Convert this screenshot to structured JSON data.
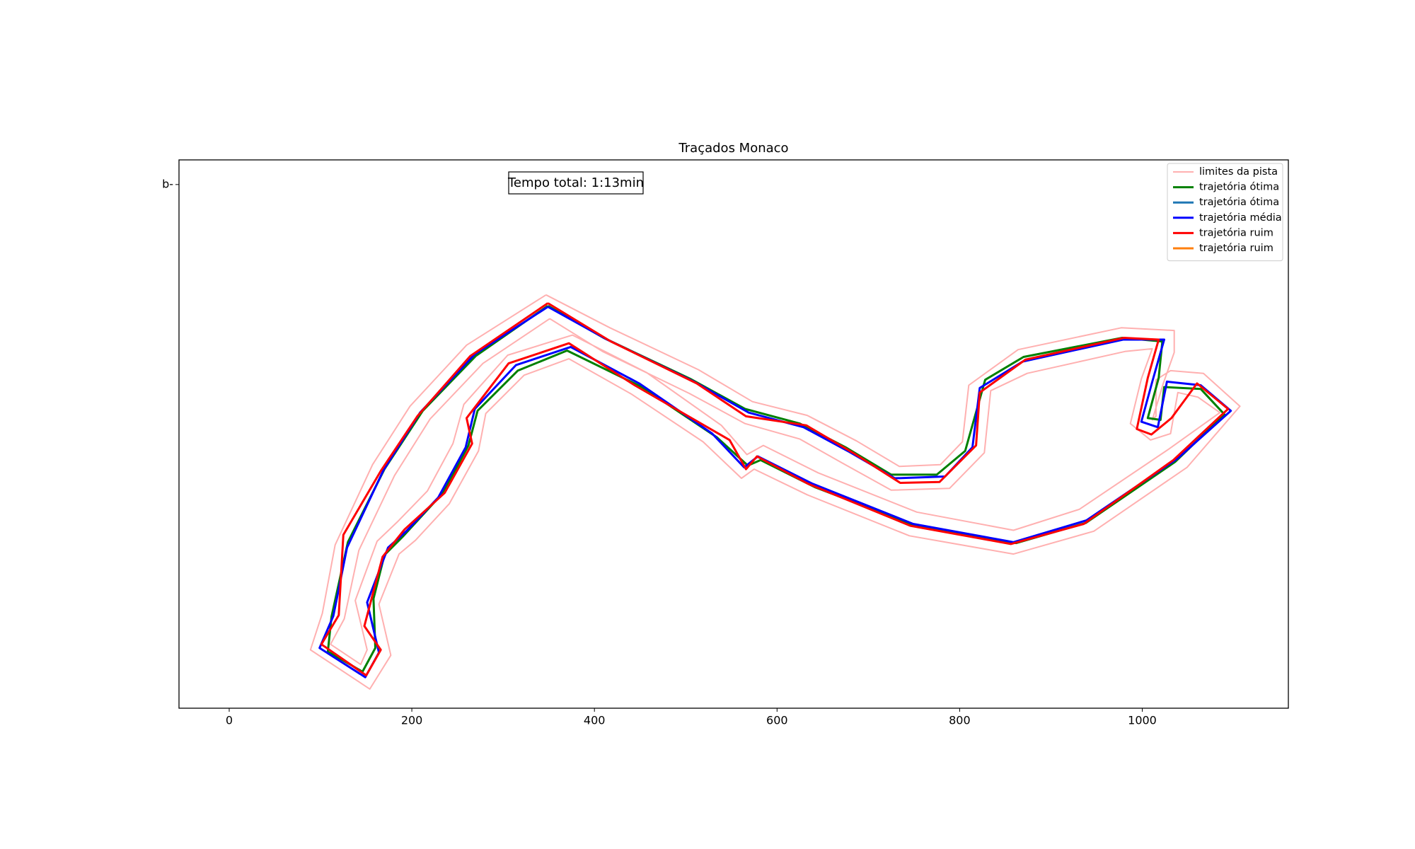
{
  "chart_data": {
    "type": "line",
    "title": "Traçados Monaco",
    "annotation": "Tempo total: 1:13min",
    "legend": "upper right",
    "xlim": [
      -55,
      1160
    ],
    "xticks": [
      0,
      200,
      400,
      600,
      800,
      1000
    ],
    "ylim": [
      -50,
      551
    ],
    "yticks": [
      {
        "value": 524,
        "label": "b-"
      }
    ],
    "series": [
      {
        "name": "limites da pista",
        "color": "#ffb0b0",
        "x": [
          347,
          417,
          514,
          573,
          633,
          687,
          734,
          779,
          803,
          810,
          864,
          977,
          1035,
          1035,
          1023,
          1011,
          1015,
          1015,
          1031,
          1067,
          1107,
          1049,
          947,
          859,
          745,
          633,
          575,
          561,
          519,
          441,
          372,
          323,
          281,
          273,
          241,
          204,
          186,
          164,
          177,
          154,
          89,
          102,
          116,
          157,
          198,
          260,
          347,
          null,
          351,
          409,
          504,
          565,
          625,
          671,
          725,
          789,
          827,
          834,
          874,
          981,
          1011,
          999,
          987,
          1009,
          1031,
          1039,
          1061,
          1085,
          1029,
          931,
          859,
          753,
          645,
          585,
          567,
          539,
          457,
          376,
          305,
          257,
          245,
          217,
          184,
          162,
          138,
          151,
          144,
          111,
          126,
          142,
          181,
          220,
          278,
          351
        ],
        "values": [
          403,
          367,
          321,
          286,
          271,
          243,
          215,
          217,
          242,
          304,
          343,
          367,
          364,
          340,
          306,
          266,
          270,
          310,
          320,
          317,
          281,
          214,
          144,
          119,
          139,
          184,
          212,
          202,
          242,
          294,
          333,
          315,
          273,
          232,
          174,
          134,
          119,
          64,
          8,
          -29,
          14,
          54,
          129,
          217,
          281,
          348,
          403,
          null,
          377,
          341,
          295,
          262,
          245,
          219,
          189,
          191,
          230,
          298,
          317,
          341,
          344,
          311,
          262,
          244,
          251,
          296,
          291,
          274,
          234,
          168,
          145,
          165,
          208,
          238,
          228,
          260,
          318,
          359,
          337,
          283,
          240,
          188,
          154,
          133,
          68,
          14,
          -2,
          20,
          48,
          123,
          205,
          267,
          328,
          377
        ]
      },
      {
        "name": "trajetória ótima",
        "color": "#008000",
        "x": [
          349,
          410,
          505,
          565,
          625,
          675,
          725,
          775,
          806,
          828,
          870,
          978,
          1022,
          1018,
          1006,
          1020,
          1024,
          1064,
          1090,
          1036,
          938,
          862,
          752,
          642,
          582,
          568,
          534,
          452,
          370,
          316,
          272,
          262,
          234,
          190,
          170,
          158,
          160,
          146,
          108,
          112,
          130,
          170,
          212,
          270,
          349
        ],
        "values": [
          391,
          356,
          311,
          278,
          262,
          236,
          206,
          206,
          232,
          310,
          335,
          356,
          352,
          312,
          268,
          266,
          302,
          300,
          272,
          220,
          153,
          131,
          150,
          192,
          222,
          216,
          247,
          302,
          342,
          320,
          276,
          238,
          186,
          138,
          118,
          70,
          16,
          -10,
          12,
          50,
          132,
          212,
          276,
          336,
          391
        ]
      },
      {
        "name": "trajetória ótima",
        "color": "#1f77b4",
        "x": [],
        "values": []
      },
      {
        "name": "trajetória média",
        "color": "#0000ff",
        "x": [
          349,
          414,
          509,
          569,
          629,
          679,
          729,
          784,
          814,
          822,
          869,
          979,
          1024,
          1011,
          999,
          1017,
          1027,
          1064,
          1097,
          1039,
          939,
          859,
          749,
          639,
          579,
          564,
          529,
          449,
          374,
          314,
          269,
          259,
          229,
          194,
          174,
          151,
          164,
          149,
          99,
          114,
          129,
          169,
          209,
          269,
          349
        ],
        "values": [
          390,
          354,
          308,
          274,
          258,
          231,
          202,
          204,
          236,
          301,
          330,
          354,
          354,
          308,
          264,
          258,
          308,
          304,
          276,
          224,
          156,
          132,
          152,
          196,
          226,
          214,
          251,
          306,
          346,
          326,
          278,
          236,
          181,
          144,
          126,
          66,
          11,
          -16,
          16,
          51,
          126,
          211,
          274,
          338,
          390
        ]
      },
      {
        "name": "trajetória ruim",
        "color": "#ff0000",
        "x": [
          349,
          418,
          512,
          566,
          632,
          683,
          735,
          778,
          818,
          822,
          872,
          980,
          1018,
          1006,
          994,
          1010,
          1032,
          1060,
          1094,
          1034,
          936,
          856,
          746,
          634,
          578,
          566,
          548,
          444,
          372,
          306,
          260,
          266,
          236,
          192,
          168,
          148,
          166,
          150,
          101,
          120,
          125,
          166,
          206,
          264,
          349
        ],
        "values": [
          394,
          352,
          306,
          270,
          260,
          230,
          197,
          198,
          238,
          296,
          332,
          356,
          354,
          312,
          256,
          250,
          268,
          306,
          278,
          222,
          152,
          130,
          150,
          196,
          226,
          212,
          244,
          304,
          350,
          328,
          268,
          240,
          186,
          146,
          116,
          40,
          14,
          -14,
          20,
          52,
          140,
          210,
          270,
          336,
          394
        ]
      },
      {
        "name": "trajetória ruim",
        "color": "#ff7f0e",
        "x": [],
        "values": []
      }
    ]
  }
}
